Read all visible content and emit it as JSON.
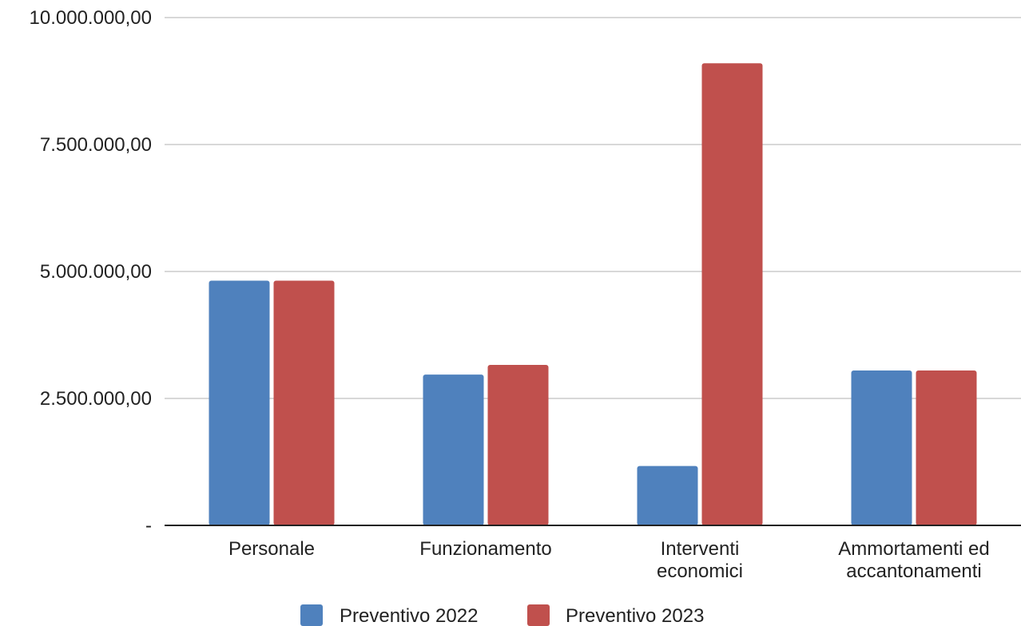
{
  "chart_data": {
    "type": "bar",
    "categories": [
      [
        "Personale"
      ],
      [
        "Funzionamento"
      ],
      [
        "Interventi",
        "economici"
      ],
      [
        "Ammortamenti ed",
        "accantonamenti"
      ]
    ],
    "series": [
      {
        "name": "Preventivo 2022",
        "color": "#4f81bd",
        "values": [
          4820000,
          2970000,
          1170000,
          3050000
        ]
      },
      {
        "name": "Preventivo 2023",
        "color": "#c0504d",
        "values": [
          4820000,
          3160000,
          9100000,
          3050000
        ]
      }
    ],
    "ylim": [
      0,
      10000000
    ],
    "y_ticks": [
      {
        "value": 0,
        "label": "-"
      },
      {
        "value": 2500000,
        "label": "2.500.000,00"
      },
      {
        "value": 5000000,
        "label": "5.000.000,00"
      },
      {
        "value": 7500000,
        "label": "7.500.000,00"
      },
      {
        "value": 10000000,
        "label": "10.000.000,00"
      }
    ],
    "grid": true,
    "legend": "bottom",
    "gridline_color": "#cccccc",
    "axis_color": "#222222"
  }
}
